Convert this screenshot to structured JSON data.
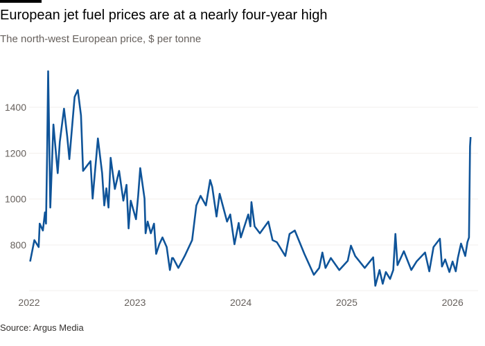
{
  "header": {
    "title": "European jet fuel prices are at a nearly four-year high",
    "subtitle": "The north-west European price, $ per tonne"
  },
  "footer": {
    "source": "Source: Argus Media"
  },
  "chart_data": {
    "type": "line",
    "title": "European jet fuel prices are at a nearly four-year high",
    "subtitle": "The north-west European price, $ per tonne",
    "xlabel": "",
    "ylabel": "$ per tonne",
    "x_ticks": [
      "2022",
      "2023",
      "2024",
      "2025",
      "2026"
    ],
    "x_tick_values": [
      2022,
      2023,
      2024,
      2025,
      2026
    ],
    "y_ticks": [
      "800",
      "1000",
      "1200",
      "1400"
    ],
    "y_tick_values": [
      800,
      1000,
      1200,
      1400
    ],
    "xlim": [
      2022,
      2026.2
    ],
    "ylim": [
      600,
      1600
    ],
    "grid": true,
    "color": "#0f5499",
    "series": [
      {
        "name": "North-west European jet fuel price",
        "x": [
          2022.01,
          2022.05,
          2022.09,
          2022.1,
          2022.13,
          2022.15,
          2022.16,
          2022.17,
          2022.18,
          2022.2,
          2022.23,
          2022.27,
          2022.29,
          2022.33,
          2022.36,
          2022.38,
          2022.43,
          2022.46,
          2022.49,
          2022.51,
          2022.58,
          2022.6,
          2022.65,
          2022.69,
          2022.71,
          2022.73,
          2022.75,
          2022.77,
          2022.81,
          2022.85,
          2022.89,
          2022.92,
          2022.94,
          2022.96,
          2023.01,
          2023.03,
          2023.05,
          2023.09,
          2023.1,
          2023.12,
          2023.15,
          2023.18,
          2023.2,
          2023.23,
          2023.26,
          2023.3,
          2023.33,
          2023.35,
          2023.36,
          2023.41,
          2023.47,
          2023.54,
          2023.58,
          2023.62,
          2023.67,
          2023.71,
          2023.73,
          2023.77,
          2023.8,
          2023.87,
          2023.9,
          2023.94,
          2023.98,
          2024.0,
          2024.07,
          2024.09,
          2024.1,
          2024.13,
          2024.18,
          2024.26,
          2024.3,
          2024.34,
          2024.42,
          2024.46,
          2024.51,
          2024.6,
          2024.69,
          2024.74,
          2024.77,
          2024.8,
          2024.85,
          2024.93,
          2025.01,
          2025.04,
          2025.08,
          2025.17,
          2025.25,
          2025.27,
          2025.31,
          2025.34,
          2025.37,
          2025.41,
          2025.44,
          2025.46,
          2025.48,
          2025.54,
          2025.61,
          2025.66,
          2025.74,
          2025.78,
          2025.82,
          2025.88,
          2025.9,
          2025.93,
          2025.97,
          2026.0,
          2026.03,
          2026.05,
          2026.08,
          2026.12,
          2026.14,
          2026.155,
          2026.165,
          2026.17
        ],
        "y": [
          728,
          821,
          791,
          893,
          863,
          942,
          893,
          1195,
          1557,
          963,
          1325,
          1113,
          1249,
          1394,
          1273,
          1174,
          1445,
          1475,
          1364,
          1123,
          1165,
          1002,
          1264,
          1113,
          972,
          1047,
          963,
          1180,
          1044,
          1123,
          993,
          1062,
          872,
          993,
          912,
          1014,
          1135,
          1002,
          851,
          902,
          851,
          893,
          761,
          803,
          833,
          791,
          691,
          743,
          743,
          700,
          752,
          821,
          972,
          1014,
          972,
          1083,
          1053,
          924,
          1023,
          902,
          933,
          803,
          896,
          833,
          933,
          881,
          987,
          881,
          851,
          902,
          821,
          812,
          752,
          848,
          863,
          761,
          670,
          700,
          767,
          700,
          743,
          691,
          731,
          797,
          752,
          700,
          746,
          622,
          691,
          631,
          682,
          652,
          691,
          848,
          712,
          773,
          691,
          728,
          767,
          685,
          791,
          827,
          706,
          737,
          682,
          728,
          685,
          743,
          806,
          752,
          812,
          833,
          1230,
          1270
        ]
      }
    ]
  }
}
